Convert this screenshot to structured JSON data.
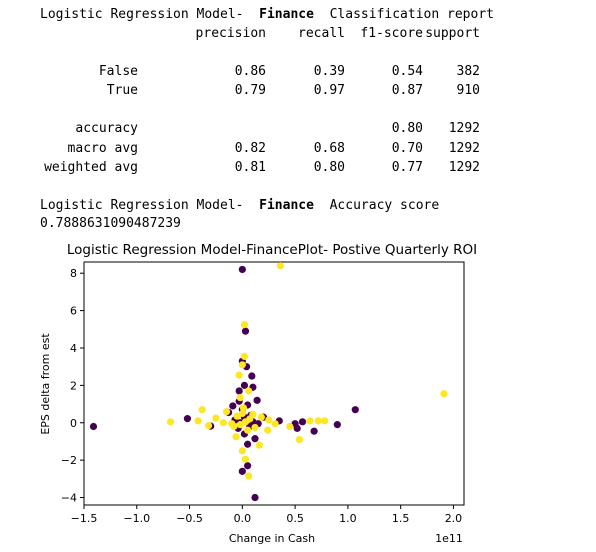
{
  "report": {
    "header_prefix": "Logistic Regression Model-",
    "header_bold": "Finance",
    "header_suffix": "Classification report",
    "columns": [
      "precision",
      "recall",
      "f1-score",
      "support"
    ],
    "rows": [
      {
        "label": "False",
        "precision": "0.86",
        "recall": "0.39",
        "f1": "0.54",
        "support": "382"
      },
      {
        "label": "True",
        "precision": "0.79",
        "recall": "0.97",
        "f1": "0.87",
        "support": "910"
      }
    ],
    "accuracy_row": {
      "label": "accuracy",
      "f1": "0.80",
      "support": "1292"
    },
    "avg_rows": [
      {
        "label": "macro avg",
        "precision": "0.82",
        "recall": "0.68",
        "f1": "0.70",
        "support": "1292"
      },
      {
        "label": "weighted avg",
        "precision": "0.81",
        "recall": "0.80",
        "f1": "0.77",
        "support": "1292"
      }
    ]
  },
  "accuracy_score": {
    "prefix": "Logistic Regression Model-",
    "bold": "Finance",
    "suffix": "Accuracy score",
    "value": "0.7888631090487239"
  },
  "chart_data": {
    "type": "scatter",
    "title": "Logistic Regression Model-FinancePlot- Postive Quarterly ROI",
    "xlabel": "Change in Cash",
    "ylabel": "EPS delta from est",
    "x_offset_label": "1e11",
    "xlim": [
      -1.5,
      2.1
    ],
    "ylim": [
      -4.4,
      8.6
    ],
    "xticks": [
      -1.5,
      -1.0,
      -0.5,
      0.0,
      0.5,
      1.0,
      1.5,
      2.0
    ],
    "xtick_labels": [
      "−1.5",
      "−1.0",
      "−0.5",
      "0.0",
      "0.5",
      "1.0",
      "1.5",
      "2.0"
    ],
    "yticks": [
      -4,
      -2,
      0,
      2,
      4,
      6,
      8
    ],
    "ytick_labels": [
      "−4",
      "−2",
      "0",
      "2",
      "4",
      "6",
      "8"
    ],
    "colors": {
      "class_0": "#440154",
      "class_1": "#fde725"
    },
    "series": [
      {
        "class": 0,
        "points": [
          [
            -1.41,
            -0.2
          ],
          [
            -0.52,
            0.22
          ],
          [
            -0.3,
            -0.18
          ],
          [
            -0.13,
            0.55
          ],
          [
            -0.09,
            0.9
          ],
          [
            0.0,
            8.2
          ],
          [
            0.03,
            4.9
          ],
          [
            0.0,
            3.3
          ],
          [
            0.04,
            3.0
          ],
          [
            0.09,
            2.5
          ],
          [
            0.02,
            2.0
          ],
          [
            -0.03,
            1.7
          ],
          [
            0.1,
            1.9
          ],
          [
            0.14,
            1.2
          ],
          [
            -0.03,
            1.15
          ],
          [
            0.05,
            0.95
          ],
          [
            0.0,
            0.7
          ],
          [
            0.08,
            0.4
          ],
          [
            0.2,
            0.3
          ],
          [
            0.35,
            0.1
          ],
          [
            0.5,
            -0.05
          ],
          [
            0.52,
            -0.3
          ],
          [
            0.57,
            0.05
          ],
          [
            0.68,
            -0.45
          ],
          [
            0.9,
            -0.1
          ],
          [
            1.07,
            0.7
          ],
          [
            0.02,
            -0.6
          ],
          [
            0.05,
            -1.15
          ],
          [
            0.12,
            -0.85
          ],
          [
            0.0,
            -2.6
          ],
          [
            0.05,
            -2.3
          ],
          [
            0.12,
            -4.0
          ],
          [
            -0.02,
            0.0
          ],
          [
            0.02,
            0.3
          ],
          [
            -0.04,
            -0.3
          ],
          [
            0.07,
            -0.2
          ],
          [
            -0.07,
            0.15
          ],
          [
            0.1,
            0.05
          ],
          [
            0.03,
            0.15
          ],
          [
            0.15,
            -0.05
          ]
        ]
      },
      {
        "class": 1,
        "points": [
          [
            0.36,
            8.4
          ],
          [
            0.02,
            5.25
          ],
          [
            0.02,
            3.55
          ],
          [
            0.0,
            3.1
          ],
          [
            -0.03,
            2.55
          ],
          [
            0.06,
            1.7
          ],
          [
            -0.02,
            1.35
          ],
          [
            -0.15,
            0.6
          ],
          [
            -0.38,
            0.7
          ],
          [
            -0.68,
            0.05
          ],
          [
            -0.42,
            0.1
          ],
          [
            -0.32,
            -0.15
          ],
          [
            -0.25,
            0.25
          ],
          [
            0.25,
            0.15
          ],
          [
            0.31,
            -0.05
          ],
          [
            0.45,
            -0.2
          ],
          [
            0.64,
            0.1
          ],
          [
            0.72,
            0.1
          ],
          [
            0.78,
            0.1
          ],
          [
            0.54,
            -0.9
          ],
          [
            0.24,
            -0.4
          ],
          [
            0.16,
            -1.2
          ],
          [
            0.0,
            -1.5
          ],
          [
            0.03,
            -1.95
          ],
          [
            0.06,
            -2.85
          ],
          [
            1.91,
            1.55
          ],
          [
            -0.08,
            -0.2
          ],
          [
            0.0,
            0.5
          ],
          [
            -0.05,
            0.35
          ],
          [
            0.05,
            -0.4
          ],
          [
            0.1,
            0.45
          ],
          [
            -0.1,
            -0.05
          ],
          [
            0.12,
            -0.25
          ],
          [
            0.03,
            0.05
          ],
          [
            -0.02,
            -0.1
          ],
          [
            0.07,
            0.2
          ],
          [
            -0.18,
            0.0
          ],
          [
            0.18,
            0.3
          ],
          [
            -0.06,
            -0.75
          ],
          [
            0.01,
            0.8
          ]
        ]
      }
    ]
  }
}
